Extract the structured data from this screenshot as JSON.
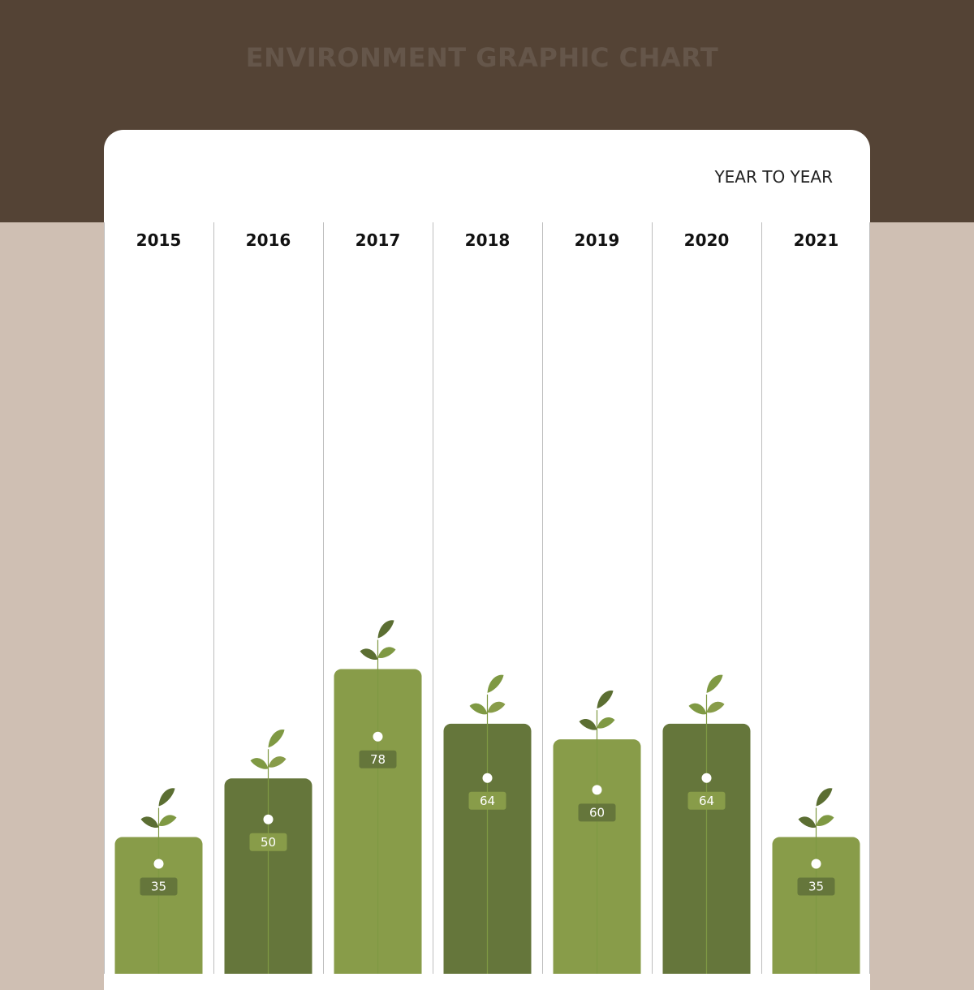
{
  "header": {
    "title": "ENVIRONMENT GRAPHIC CHART"
  },
  "card": {
    "subtitle": "YEAR TO YEAR"
  },
  "colors": {
    "header_bg": "#544335",
    "page_bg": "#cfbfb3",
    "bar_light": "#889c49",
    "bar_dark": "#65763b",
    "leaf_light": "#7f9943",
    "leaf_dark": "#5b6e32",
    "divider": "#bdbdbd"
  },
  "chart_data": {
    "type": "bar",
    "categories": [
      "2015",
      "2016",
      "2017",
      "2018",
      "2019",
      "2020",
      "2021"
    ],
    "values": [
      35,
      50,
      78,
      64,
      60,
      64,
      35
    ],
    "bar_shades": [
      "light",
      "dark",
      "light",
      "dark",
      "light",
      "dark",
      "light"
    ],
    "title": "ENVIRONMENT GRAPHIC CHART",
    "subtitle": "YEAR TO YEAR",
    "grid": false,
    "value_labels": true,
    "decoration": "sprout-icon"
  }
}
